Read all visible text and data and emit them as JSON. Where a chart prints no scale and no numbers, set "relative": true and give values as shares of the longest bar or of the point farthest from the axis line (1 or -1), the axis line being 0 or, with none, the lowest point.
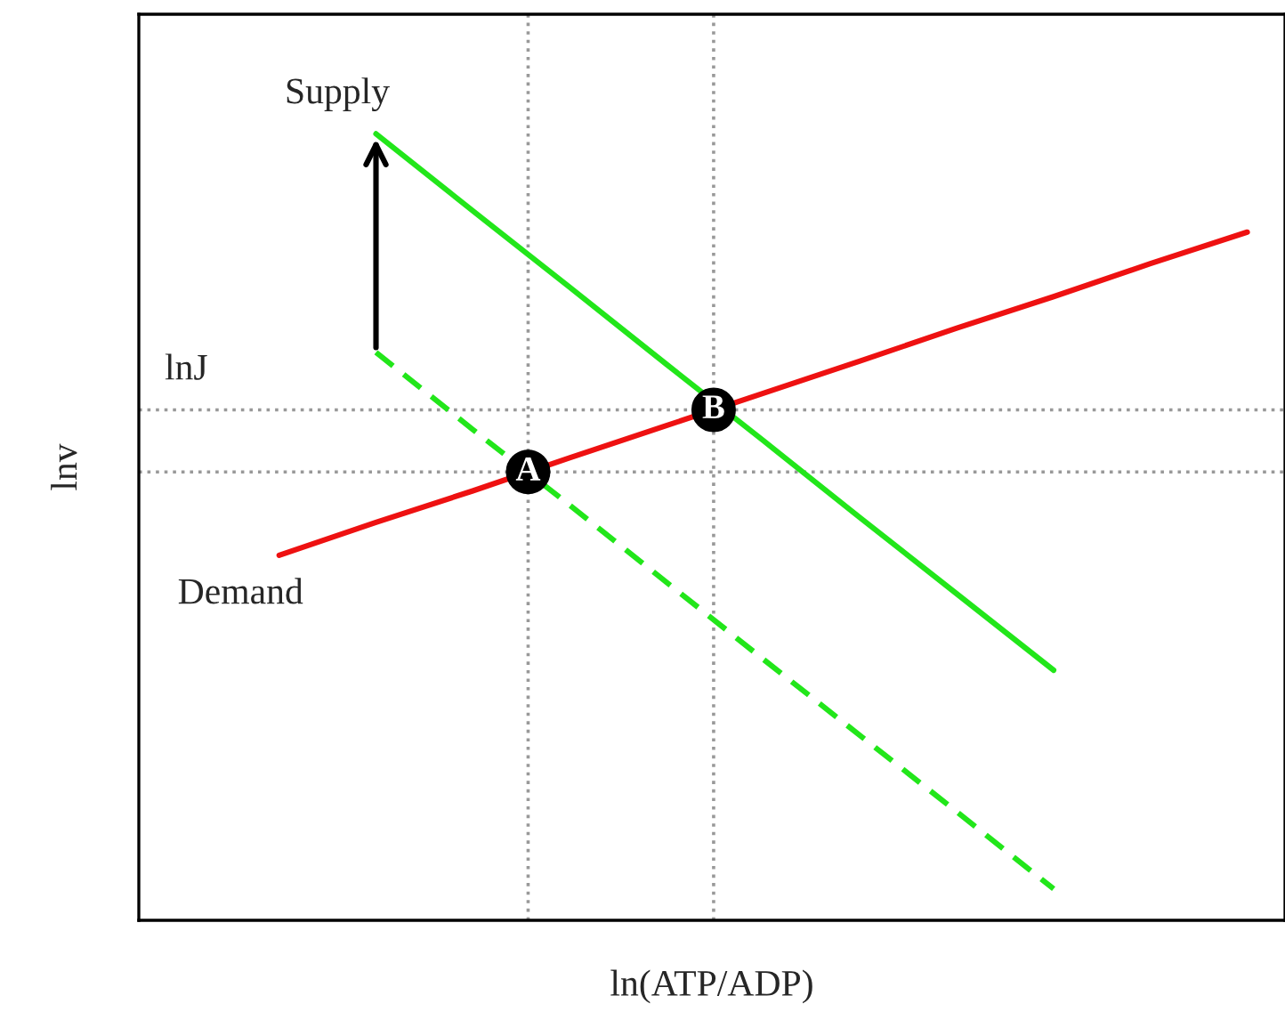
{
  "chart_data": {
    "type": "line",
    "relative": true,
    "xlabel": "ln(ATP/ADP)",
    "ylabel": "lnv",
    "categories": [
      null,
      null,
      null,
      null,
      null,
      null,
      null,
      null,
      null,
      null,
      null
    ],
    "series": [
      {
        "name": "Demand",
        "color": "#ee1111",
        "line_style": "solid",
        "values": [
          0.464,
          0.506,
          0.546,
          0.588,
          0.629,
          0.67,
          0.711,
          0.753,
          0.793,
          0.835,
          0.875
        ]
      },
      {
        "name": "Supply",
        "color": "#22e61a",
        "line_style": "solid",
        "values": [
          null,
          1.0,
          0.902,
          0.805,
          0.707,
          0.61,
          0.512,
          0.415,
          0.318,
          null,
          null
        ]
      },
      {
        "color": "#22e61a",
        "line_style": "dashed",
        "values": [
          null,
          0.722,
          0.624,
          0.528,
          0.43,
          0.332,
          0.235,
          0.138,
          0.04,
          null,
          null
        ]
      }
    ],
    "ref_lines": [
      {
        "axis": "y",
        "value": 0.57,
        "color": "#999999",
        "line_style": "dotted"
      },
      {
        "axis": "y",
        "value": 0.649,
        "label": "lnJ",
        "color": "#999999",
        "line_style": "dotted"
      }
    ],
    "annotations": [
      "A",
      "B"
    ]
  }
}
